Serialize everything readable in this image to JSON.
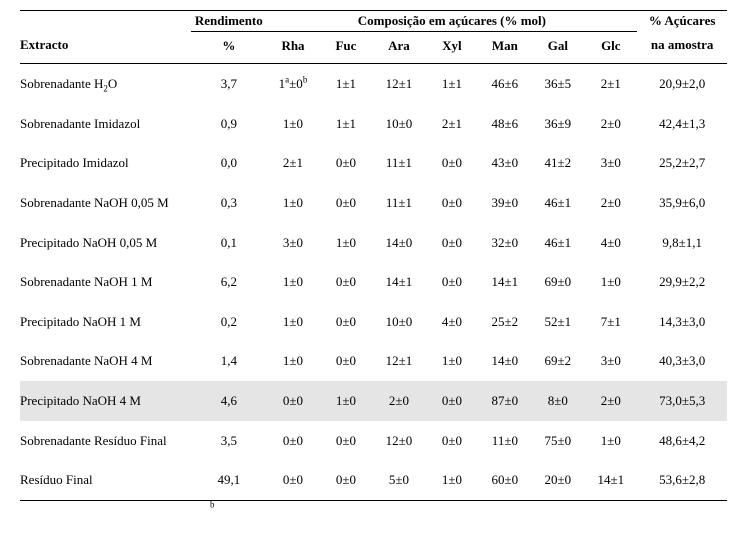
{
  "colors": {
    "bg": "#ffffff",
    "text": "#000000",
    "rule": "#000000",
    "highlight": "#e5e5e5"
  },
  "header": {
    "extracto": "Extracto",
    "rendimento": "Rendimento",
    "rendimento_unit": "%",
    "comp_title": "Composição em açúcares (% mol)",
    "sugar_cols": [
      "Rha",
      "Fuc",
      "Ara",
      "Xyl",
      "Man",
      "Gal",
      "Glc"
    ],
    "last_top": "% Açúcares",
    "last_bot": "na amostra"
  },
  "first_cell_parts": {
    "value": "1",
    "sup_a": "a",
    "pm": "±0",
    "sup_b": "b"
  },
  "rows": [
    {
      "name_html": "Sobrenadante H<span class=\"sub\">2</span>O",
      "yield": "3,7",
      "s": [
        "__FIRST__",
        "1±1",
        "12±1",
        "1±1",
        "46±6",
        "36±5",
        "2±1"
      ],
      "last": "20,9±2,0",
      "hl": false
    },
    {
      "name_html": "Sobrenadante Imidazol",
      "yield": "0,9",
      "s": [
        "1±0",
        "1±1",
        "10±0",
        "2±1",
        "48±6",
        "36±9",
        "2±0"
      ],
      "last": "42,4±1,3",
      "hl": false
    },
    {
      "name_html": "Precipitado Imidazol",
      "yield": "0,0",
      "s": [
        "2±1",
        "0±0",
        "11±1",
        "0±0",
        "43±0",
        "41±2",
        "3±0"
      ],
      "last": "25,2±2,7",
      "hl": false
    },
    {
      "name_html": "Sobrenadante NaOH 0,05 M",
      "yield": "0,3",
      "s": [
        "1±0",
        "0±0",
        "11±1",
        "0±0",
        "39±0",
        "46±1",
        "2±0"
      ],
      "last": "35,9±6,0",
      "hl": false
    },
    {
      "name_html": "Precipitado NaOH 0,05 M",
      "yield": "0,1",
      "s": [
        "3±0",
        "1±0",
        "14±0",
        "0±0",
        "32±0",
        "46±1",
        "4±0"
      ],
      "last": "9,8±1,1",
      "hl": false
    },
    {
      "name_html": "Sobrenadante NaOH 1 M",
      "yield": "6,2",
      "s": [
        "1±0",
        "0±0",
        "14±1",
        "0±0",
        "14±1",
        "69±0",
        "1±0"
      ],
      "last": "29,9±2,2",
      "hl": false
    },
    {
      "name_html": "Precipitado NaOH 1 M",
      "yield": "0,2",
      "s": [
        "1±0",
        "0±0",
        "10±0",
        "4±0",
        "25±2",
        "52±1",
        "7±1"
      ],
      "last": "14,3±3,0",
      "hl": false
    },
    {
      "name_html": "Sobrenadante NaOH 4 M",
      "yield": "1,4",
      "s": [
        "1±0",
        "0±0",
        "12±1",
        "1±0",
        "14±0",
        "69±2",
        "3±0"
      ],
      "last": "40,3±3,0",
      "hl": false
    },
    {
      "name_html": "Precipitado NaOH 4 M",
      "yield": "4,6",
      "s": [
        "0±0",
        "1±0",
        "2±0",
        "0±0",
        "87±0",
        "8±0",
        "2±0"
      ],
      "last": "73,0±5,3",
      "hl": true
    },
    {
      "name_html": "Sobrenadante Resíduo Final",
      "yield": "3,5",
      "s": [
        "0±0",
        "0±0",
        "12±0",
        "0±0",
        "11±0",
        "75±0",
        "1±0"
      ],
      "last": "48,6±4,2",
      "hl": false
    },
    {
      "name_html": "Resíduo Final",
      "yield": "49,1",
      "s": [
        "0±0",
        "0±0",
        "5±0",
        "1±0",
        "60±0",
        "20±0",
        "14±1"
      ],
      "last": "53,6±2,8",
      "hl": false
    }
  ],
  "footnote_sup": "b"
}
